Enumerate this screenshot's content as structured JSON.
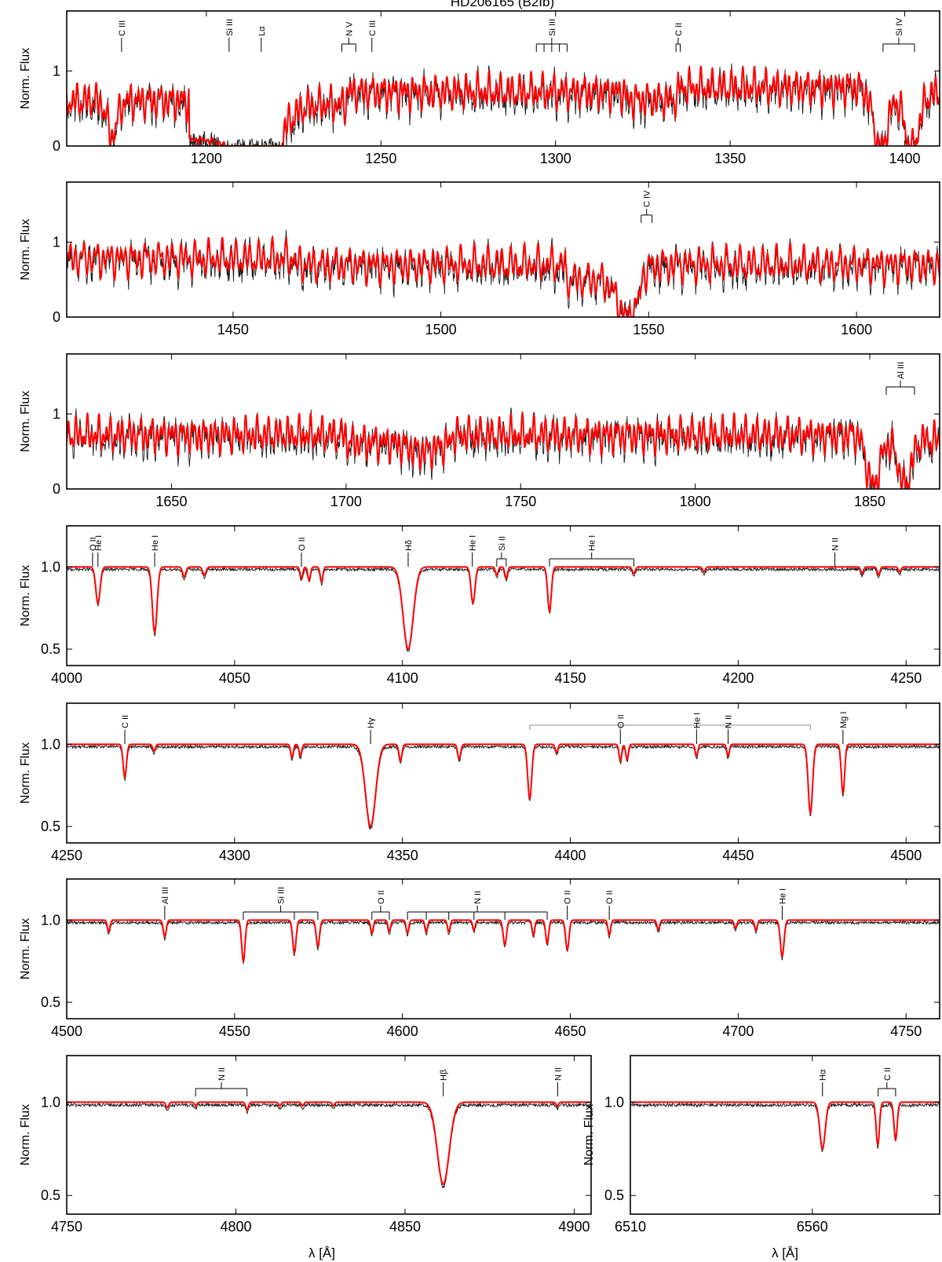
{
  "figure": {
    "title": "HD206165 (B2Ib)",
    "ylabel": "Norm. Flux",
    "xlabel": "λ [Å]",
    "colors": {
      "observed": "#1a1a1a",
      "model": "#ff0000",
      "frame": "#000000"
    }
  },
  "chart_data": [
    {
      "type": "line",
      "id": "uv1",
      "xlim": [
        1160,
        1410
      ],
      "ylim": [
        0,
        1.8
      ],
      "xticks": [
        1200,
        1250,
        1300,
        1350,
        1400
      ],
      "yticks": [
        0,
        1
      ],
      "ytick_labels": [
        "0",
        "1"
      ],
      "bands": [
        [
          1160,
          1195,
          0.6
        ],
        [
          1195,
          1222,
          0.08
        ],
        [
          1222,
          1240,
          0.55
        ],
        [
          1240,
          1320,
          0.72
        ],
        [
          1320,
          1335,
          0.62
        ],
        [
          1335,
          1392,
          0.78
        ],
        [
          1392,
          1410,
          0.7
        ]
      ],
      "wells": [
        [
          1216,
          11,
          0.68
        ]
      ],
      "model_troughs": [
        [
          1173,
          2,
          0.45
        ],
        [
          1393,
          2.8,
          0.75
        ],
        [
          1402,
          2.8,
          0.75
        ]
      ],
      "lines": [
        {
          "label": "C III",
          "x": [
            1175.7
          ]
        },
        {
          "label": "Si III",
          "x": [
            1206.5
          ]
        },
        {
          "label": "Lα",
          "x": [
            1215.7
          ]
        },
        {
          "label": "N V",
          "x": [
            1238.8,
            1242.8
          ]
        },
        {
          "label": "C III",
          "x": [
            1247.4
          ]
        },
        {
          "label": "Si III",
          "x": [
            1294.5,
            1296.7,
            1298.9,
            1301.1,
            1303.3
          ]
        },
        {
          "label": "C II",
          "x": [
            1334.5,
            1335.7
          ]
        },
        {
          "label": "Si IV",
          "x": [
            1393.8,
            1402.8
          ]
        }
      ]
    },
    {
      "type": "line",
      "id": "uv2",
      "xlim": [
        1410,
        1620
      ],
      "ylim": [
        0,
        1.8
      ],
      "xticks": [
        1450,
        1500,
        1550,
        1600
      ],
      "yticks": [
        0,
        1
      ],
      "ytick_labels": [
        "0",
        "1"
      ],
      "bands": [
        [
          1410,
          1465,
          0.78
        ],
        [
          1465,
          1530,
          0.7
        ],
        [
          1530,
          1548,
          0.5
        ],
        [
          1548,
          1620,
          0.7
        ]
      ],
      "wells": [
        [
          1545,
          5,
          0.5
        ]
      ],
      "model_troughs": [],
      "lines": [
        {
          "label": "C IV",
          "x": [
            1548.2,
            1550.8
          ]
        }
      ]
    },
    {
      "type": "line",
      "id": "uv3",
      "xlim": [
        1620,
        1870
      ],
      "ylim": [
        0,
        1.8
      ],
      "xticks": [
        1650,
        1700,
        1750,
        1800,
        1850
      ],
      "yticks": [
        0,
        1
      ],
      "ytick_labels": [
        "0",
        "1"
      ],
      "bands": [
        [
          1620,
          1700,
          0.72
        ],
        [
          1700,
          1730,
          0.62
        ],
        [
          1730,
          1848,
          0.72
        ],
        [
          1848,
          1870,
          0.65
        ]
      ],
      "wells": [
        [
          1722,
          8,
          0.12
        ]
      ],
      "model_troughs": [
        [
          1851,
          2.5,
          0.6
        ],
        [
          1860,
          2.5,
          0.6
        ]
      ],
      "lines": [
        {
          "label": "Al III",
          "x": [
            1854.7,
            1862.8
          ]
        }
      ]
    },
    {
      "type": "line",
      "id": "opt1",
      "xlim": [
        4000,
        4260
      ],
      "ylim": [
        0.4,
        1.25
      ],
      "xticks": [
        4000,
        4050,
        4100,
        4150,
        4200,
        4250
      ],
      "yticks": [
        0.5,
        1.0
      ],
      "ytick_labels": [
        "0.5",
        "1.0"
      ],
      "absorption": [
        [
          4009.3,
          0.22,
          1.3
        ],
        [
          4026.2,
          0.4,
          1.4
        ],
        [
          4035,
          0.06,
          1
        ],
        [
          4041,
          0.05,
          1
        ],
        [
          4069.9,
          0.07,
          0.8
        ],
        [
          4072.2,
          0.08,
          0.8
        ],
        [
          4075.9,
          0.09,
          0.8
        ],
        [
          4101.7,
          0.5,
          3
        ],
        [
          4121,
          0.22,
          1.2
        ],
        [
          4128.1,
          0.05,
          0.8
        ],
        [
          4130.9,
          0.07,
          0.8
        ],
        [
          4143.8,
          0.27,
          1.1
        ],
        [
          4168.9,
          0.04,
          0.9
        ],
        [
          4189.8,
          0.03,
          0.8
        ],
        [
          4236.9,
          0.04,
          0.8
        ],
        [
          4241.8,
          0.05,
          0.8
        ],
        [
          4248.1,
          0.03,
          0.8
        ]
      ],
      "lines": [
        {
          "label": "O II",
          "x": [
            4007.7
          ]
        },
        {
          "label": "He I",
          "x": [
            4009.3
          ]
        },
        {
          "label": "He I",
          "x": [
            4026.2
          ]
        },
        {
          "label": "O II",
          "x": [
            4069.9
          ]
        },
        {
          "label": "Hδ",
          "x": [
            4101.7
          ]
        },
        {
          "label": "He I",
          "x": [
            4120.8
          ]
        },
        {
          "label": "Si II",
          "x": [
            4128.1,
            4130.9
          ]
        },
        {
          "label": "He I",
          "x": [
            4143.8,
            4168.9
          ]
        },
        {
          "label": "N II",
          "x": [
            4228.8
          ]
        }
      ]
    },
    {
      "type": "line",
      "id": "opt2",
      "xlim": [
        4250,
        4510
      ],
      "ylim": [
        0.4,
        1.25
      ],
      "xticks": [
        4250,
        4300,
        4350,
        4400,
        4450,
        4500
      ],
      "yticks": [
        0.5,
        1.0
      ],
      "ytick_labels": [
        "0.5",
        "1.0"
      ],
      "absorption": [
        [
          4267.3,
          0.2,
          1
        ],
        [
          4276,
          0.04,
          0.8
        ],
        [
          4317.1,
          0.08,
          0.8
        ],
        [
          4319.6,
          0.07,
          0.8
        ],
        [
          4340.5,
          0.5,
          3
        ],
        [
          4349.4,
          0.1,
          0.9
        ],
        [
          4366.9,
          0.09,
          0.9
        ],
        [
          4387.9,
          0.33,
          1.2
        ],
        [
          4395.9,
          0.05,
          0.8
        ],
        [
          4414.9,
          0.1,
          0.8
        ],
        [
          4416.9,
          0.09,
          0.8
        ],
        [
          4437.6,
          0.07,
          0.8
        ],
        [
          4447,
          0.07,
          0.8
        ],
        [
          4471.5,
          0.42,
          1.3
        ],
        [
          4481.2,
          0.3,
          1
        ]
      ],
      "lines": [
        {
          "label": "C II",
          "x": [
            4267.3
          ]
        },
        {
          "label": "Hγ",
          "x": [
            4340.5
          ]
        },
        {
          "label": "O II",
          "x": [
            4414.9
          ]
        },
        {
          "label": "He I",
          "x": [
            4437.6
          ]
        },
        {
          "label": "N II",
          "x": [
            4447
          ]
        },
        {
          "label": "Mg I",
          "x": [
            4481.2
          ]
        }
      ],
      "brackets": [
        {
          "from": 4387.9,
          "to": 4471.5,
          "ticks": [
            4387.9,
            4414.9,
            4437.6,
            4447.0,
            4471.5
          ]
        }
      ]
    },
    {
      "type": "line",
      "id": "opt3",
      "xlim": [
        4500,
        4760
      ],
      "ylim": [
        0.4,
        1.25
      ],
      "xticks": [
        4500,
        4550,
        4600,
        4650,
        4700,
        4750
      ],
      "yticks": [
        0.5,
        1.0
      ],
      "ytick_labels": [
        "0.5",
        "1.0"
      ],
      "absorption": [
        [
          4512.5,
          0.07,
          0.8
        ],
        [
          4529.2,
          0.1,
          0.9
        ],
        [
          4552.6,
          0.25,
          1
        ],
        [
          4567.8,
          0.2,
          1
        ],
        [
          4574.8,
          0.16,
          1
        ],
        [
          4590.9,
          0.08,
          0.8
        ],
        [
          4596.1,
          0.07,
          0.8
        ],
        [
          4601.5,
          0.08,
          0.8
        ],
        [
          4607.1,
          0.07,
          0.8
        ],
        [
          4613.8,
          0.07,
          0.8
        ],
        [
          4621.3,
          0.06,
          0.8
        ],
        [
          4630.5,
          0.15,
          1
        ],
        [
          4639,
          0.09,
          0.8
        ],
        [
          4643.1,
          0.14,
          0.9
        ],
        [
          4649.1,
          0.18,
          1
        ],
        [
          4661.6,
          0.09,
          0.8
        ],
        [
          4676.2,
          0.06,
          0.8
        ],
        [
          4699.2,
          0.05,
          0.8
        ],
        [
          4705.3,
          0.06,
          0.8
        ],
        [
          4713.1,
          0.22,
          1.1
        ]
      ],
      "lines": [
        {
          "label": "Al III",
          "x": [
            4529.2
          ]
        },
        {
          "label": "Si III",
          "x": [
            4552.6,
            4567.8,
            4574.8
          ]
        },
        {
          "label": "O II",
          "x": [
            4590.9,
            4596.1
          ]
        },
        {
          "label": "N II",
          "x": [
            4601.5,
            4607.1,
            4613.8,
            4621.3,
            4630.5,
            4643.1
          ]
        },
        {
          "label": "O II",
          "x": [
            4649.1
          ]
        },
        {
          "label": "O II",
          "x": [
            4661.6
          ]
        },
        {
          "label": "He I",
          "x": [
            4713.1
          ]
        }
      ]
    },
    {
      "type": "line",
      "id": "opt4",
      "xlim": [
        4750,
        4905
      ],
      "ylim": [
        0.4,
        1.25
      ],
      "xticks": [
        4750,
        4800,
        4850,
        4900
      ],
      "yticks": [
        0.5,
        1.0
      ],
      "ytick_labels": [
        "0.5",
        "1.0"
      ],
      "absorption": [
        [
          4779.7,
          0.03,
          0.8
        ],
        [
          4788.1,
          0.02,
          0.7
        ],
        [
          4803.3,
          0.04,
          0.8
        ],
        [
          4813,
          0.02,
          0.7
        ],
        [
          4819.7,
          0.02,
          0.7
        ],
        [
          4828.8,
          0.02,
          0.7
        ],
        [
          4861.3,
          0.44,
          3.5
        ],
        [
          4895,
          0.02,
          0.7
        ]
      ],
      "lines": [
        {
          "label": "N II",
          "x": [
            4788.1,
            4803.3
          ]
        },
        {
          "label": "Hβ",
          "x": [
            4861.3
          ]
        },
        {
          "label": "N II",
          "x": [
            4895.1
          ]
        }
      ]
    },
    {
      "type": "line",
      "id": "opt5",
      "xlim": [
        6510,
        6595
      ],
      "ylim": [
        0.4,
        1.25
      ],
      "xticks": [
        6510,
        6560
      ],
      "yticks": [
        0.5,
        1.0
      ],
      "ytick_labels": [
        "0.5",
        "1.0"
      ],
      "absorption": [
        [
          6562.8,
          0.25,
          1.5
        ],
        [
          6578,
          0.23,
          0.9
        ],
        [
          6582.9,
          0.2,
          0.9
        ]
      ],
      "lines": [
        {
          "label": "Hα",
          "x": [
            6562.8
          ]
        },
        {
          "label": "C II",
          "x": [
            6578.1,
            6582.9
          ]
        }
      ]
    }
  ]
}
